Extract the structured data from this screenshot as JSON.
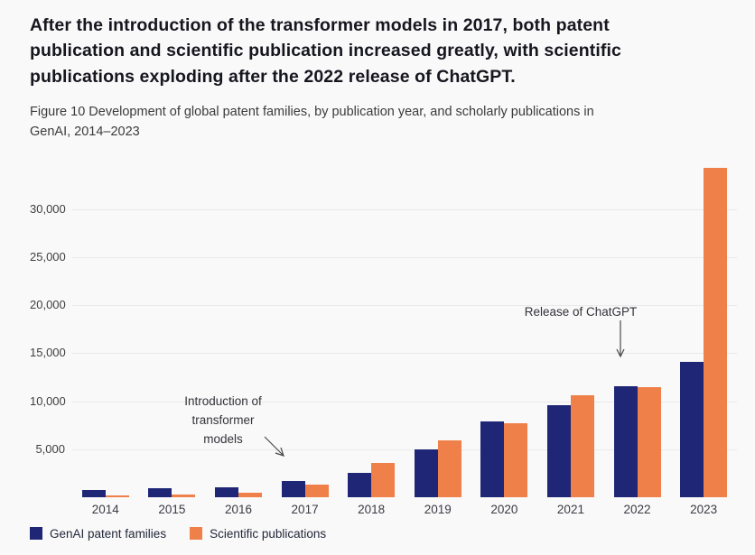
{
  "header": {
    "title": "After the introduction of the transformer models in 2017, both patent\npublication and scientific publication increased greatly, with scientific\npublications exploding after the 2022 release of ChatGPT.",
    "caption": "Figure 10 Development of global patent families, by publication year, and scholarly publications in\nGenAI, 2014–2023"
  },
  "chart_data": {
    "type": "bar",
    "categories": [
      "2014",
      "2015",
      "2016",
      "2017",
      "2018",
      "2019",
      "2020",
      "2021",
      "2022",
      "2023"
    ],
    "series": [
      {
        "name": "GenAI patent families",
        "color": "#1f2676",
        "values": [
          750,
          900,
          1050,
          1650,
          2500,
          5000,
          7850,
          9550,
          11600,
          14100
        ]
      },
      {
        "name": "Scientific publications",
        "color": "#ef8049",
        "values": [
          150,
          300,
          450,
          1350,
          3550,
          5900,
          7750,
          10650,
          11500,
          34300
        ]
      }
    ],
    "title": "",
    "xlabel": "",
    "ylabel": "",
    "ylim": [
      0,
      35000
    ],
    "yticks": [
      {
        "value": 5000,
        "label": "5,000"
      },
      {
        "value": 10000,
        "label": "10,000"
      },
      {
        "value": 15000,
        "label": "15,000"
      },
      {
        "value": 20000,
        "label": "20,000"
      },
      {
        "value": 25000,
        "label": "25,000"
      },
      {
        "value": 30000,
        "label": "30,000"
      }
    ],
    "grid": "horizontal",
    "legend_position": "bottom-left",
    "annotations": [
      {
        "text": "Introduction of\ntransformer\nmodels",
        "arrow": "diagonal-down-right",
        "target_year": "2017"
      },
      {
        "text": "Release of ChatGPT",
        "arrow": "vertical-down",
        "target_year": "2022"
      }
    ]
  },
  "colors": {
    "background": "#f9f9f9",
    "gridline": "#eaeaea",
    "title_text": "#16161f",
    "caption_text": "#3b3b3b",
    "axis_text": "#3f3f3f",
    "annotation_text": "#33333a",
    "arrow": "#4a4a4a"
  }
}
